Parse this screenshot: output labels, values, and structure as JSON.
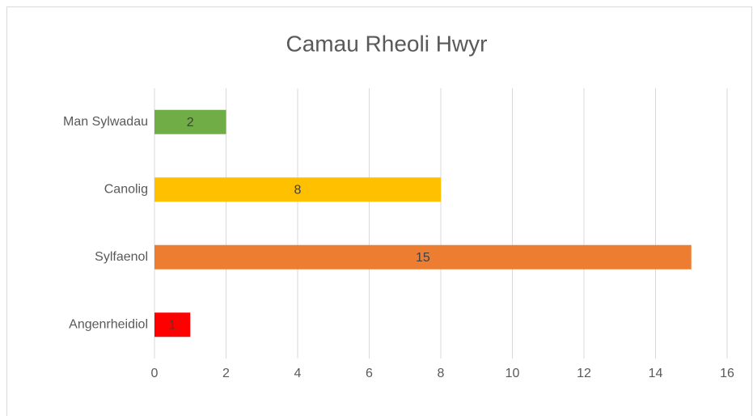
{
  "chart_data": {
    "type": "bar",
    "orientation": "horizontal",
    "title": "Camau Rheoli Hwyr",
    "categories": [
      "Man Sylwadau",
      "Canolig",
      "Sylfaenol",
      "Angenrheidiol"
    ],
    "values": [
      2,
      8,
      15,
      1
    ],
    "colors": [
      "#70ad47",
      "#ffc000",
      "#ed7d31",
      "#ff0000"
    ],
    "xlim": [
      0,
      16
    ],
    "xticks": [
      0,
      2,
      4,
      6,
      8,
      10,
      12,
      14,
      16
    ],
    "grid": true
  }
}
